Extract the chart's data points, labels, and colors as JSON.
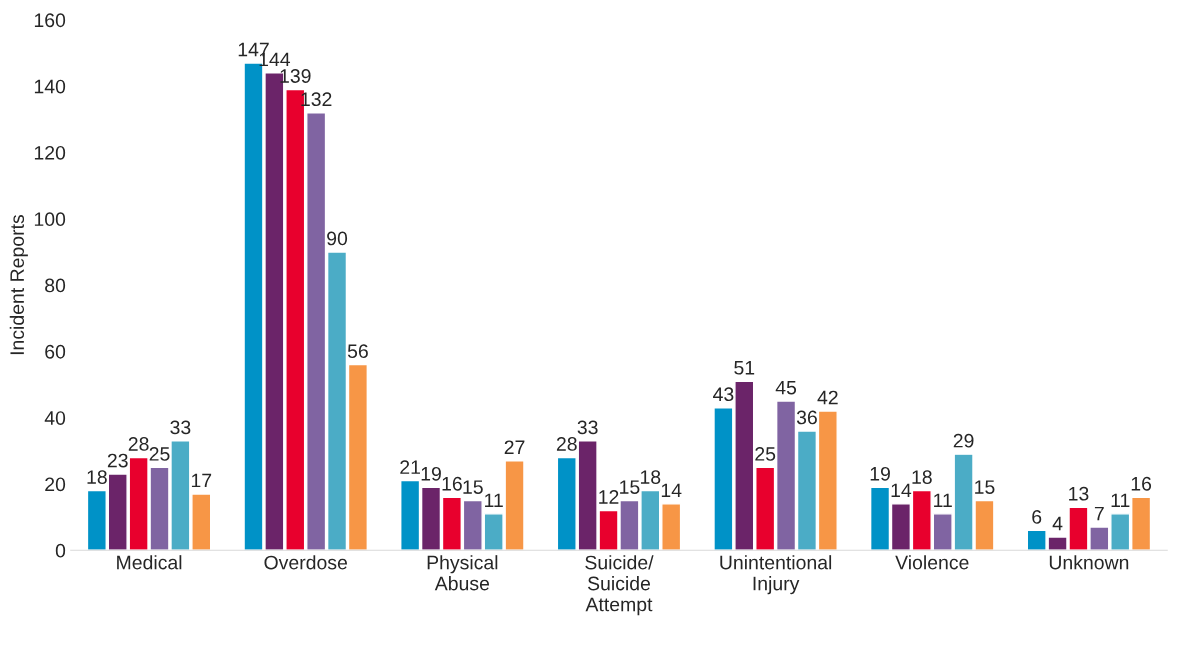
{
  "chart_data": {
    "type": "bar",
    "ylabel": "Incident Reports",
    "categories": [
      "Medical",
      "Overdose",
      "Physical\nAbuse",
      "Suicide/\nSuicide\nAttempt",
      "Unintentional\nInjury",
      "Violence",
      "Unknown"
    ],
    "series": [
      {
        "color": "#0092c7",
        "values": [
          18,
          147,
          21,
          28,
          43,
          19,
          6
        ]
      },
      {
        "color": "#6b2469",
        "values": [
          23,
          144,
          19,
          33,
          51,
          14,
          4
        ]
      },
      {
        "color": "#e8002d",
        "values": [
          28,
          139,
          16,
          12,
          25,
          18,
          13
        ]
      },
      {
        "color": "#8064a2",
        "values": [
          25,
          132,
          15,
          15,
          45,
          11,
          7
        ]
      },
      {
        "color": "#4bacc6",
        "values": [
          33,
          90,
          11,
          18,
          36,
          29,
          11
        ]
      },
      {
        "color": "#f79646",
        "values": [
          17,
          56,
          27,
          14,
          42,
          15,
          16
        ]
      }
    ],
    "ylim": [
      0,
      160
    ],
    "yticks": [
      0,
      20,
      40,
      60,
      80,
      100,
      120,
      140,
      160
    ],
    "data_labels": true,
    "grid": false,
    "legend": false
  }
}
